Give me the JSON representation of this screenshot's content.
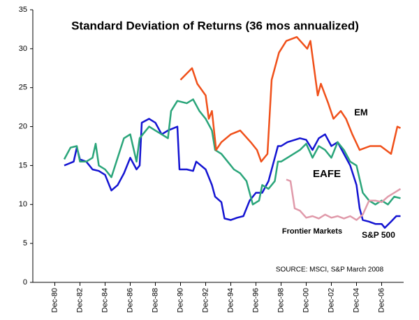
{
  "chart_data": {
    "type": "line",
    "title": "Standard Deviation of Returns (36 mos annualized)",
    "source": "SOURCE: MSCI, S&P  March 2008",
    "xlim": [
      "1979-03",
      "2008-09"
    ],
    "xticks": [
      {
        "value": "1980-12",
        "label": "Dec-80"
      },
      {
        "value": "1982-12",
        "label": "Dec-82"
      },
      {
        "value": "1984-12",
        "label": "Dec-84"
      },
      {
        "value": "1986-12",
        "label": "Dec-86"
      },
      {
        "value": "1988-12",
        "label": "Dec-88"
      },
      {
        "value": "1990-12",
        "label": "Dec-90"
      },
      {
        "value": "1992-12",
        "label": "Dec-92"
      },
      {
        "value": "1994-12",
        "label": "Dec-94"
      },
      {
        "value": "1996-12",
        "label": "Dec-96"
      },
      {
        "value": "1998-12",
        "label": "Dec-98"
      },
      {
        "value": "2000-12",
        "label": "Dec-00"
      },
      {
        "value": "2002-12",
        "label": "Dec-02"
      },
      {
        "value": "2004-12",
        "label": "Dec-04"
      },
      {
        "value": "2006-12",
        "label": "Dec-06"
      }
    ],
    "ylim": [
      0,
      35
    ],
    "yticks": [
      0,
      5,
      10,
      15,
      20,
      25,
      30,
      35
    ],
    "grid": false,
    "series": [
      {
        "name": "S&P 500",
        "color": "#1414d2",
        "x": [
          "1981-09",
          "1982-06",
          "1982-09",
          "1982-12",
          "1983-06",
          "1983-12",
          "1984-06",
          "1984-12",
          "1985-06",
          "1985-12",
          "1986-06",
          "1986-12",
          "1987-06",
          "1987-09",
          "1987-11",
          "1988-06",
          "1988-12",
          "1989-06",
          "1989-12",
          "1990-09",
          "1990-11",
          "1991-06",
          "1991-12",
          "1992-03",
          "1992-12",
          "1993-06",
          "1993-09",
          "1994-03",
          "1994-06",
          "1994-12",
          "1995-06",
          "1995-12",
          "1996-06",
          "1996-12",
          "1997-06",
          "1997-12",
          "1998-06",
          "1998-09",
          "1998-12",
          "1999-06",
          "2000-06",
          "2000-12",
          "2001-06",
          "2001-12",
          "2002-06",
          "2002-12",
          "2003-06",
          "2003-12",
          "2004-06",
          "2004-12",
          "2005-03",
          "2005-06",
          "2005-12",
          "2006-06",
          "2006-12",
          "2007-03",
          "2007-09",
          "2008-02",
          "2008-06"
        ],
        "values": [
          15,
          15.5,
          17.3,
          15.8,
          15.5,
          14.5,
          14.3,
          13.8,
          11.8,
          12.5,
          14,
          16,
          14.5,
          15,
          20.5,
          21,
          20.5,
          19,
          19.5,
          20,
          14.5,
          14.5,
          14.3,
          15.5,
          14.5,
          12.5,
          11,
          10.3,
          8.2,
          8,
          8.3,
          8.5,
          10.5,
          11.5,
          11.5,
          13,
          16,
          17.5,
          17.5,
          18,
          18.5,
          18.3,
          17,
          18.5,
          19,
          17.5,
          18,
          16.5,
          15,
          12.5,
          9.5,
          8,
          7.8,
          7.5,
          7.5,
          7,
          7.8,
          8.5,
          8.5
        ]
      },
      {
        "name": "EAFE",
        "color": "#2aa57a",
        "x": [
          "1981-09",
          "1982-03",
          "1982-09",
          "1982-12",
          "1983-06",
          "1983-12",
          "1984-03",
          "1984-06",
          "1984-12",
          "1985-06",
          "1985-12",
          "1986-06",
          "1986-12",
          "1987-06",
          "1987-09",
          "1987-12",
          "1988-06",
          "1988-12",
          "1989-06",
          "1989-12",
          "1990-03",
          "1990-09",
          "1991-06",
          "1991-12",
          "1992-06",
          "1992-12",
          "1993-06",
          "1993-09",
          "1994-03",
          "1994-09",
          "1995-03",
          "1995-09",
          "1996-03",
          "1996-09",
          "1997-03",
          "1997-06",
          "1997-12",
          "1998-06",
          "1998-09",
          "1998-12",
          "1999-06",
          "2000-06",
          "2000-12",
          "2001-06",
          "2001-12",
          "2002-06",
          "2002-12",
          "2003-06",
          "2003-12",
          "2004-06",
          "2004-12",
          "2005-06",
          "2005-12",
          "2006-06",
          "2006-12",
          "2007-06",
          "2007-12",
          "2008-06"
        ],
        "values": [
          15.8,
          17.3,
          17.5,
          15.5,
          15.5,
          16,
          17.8,
          15,
          14.5,
          13.5,
          16,
          18.5,
          19,
          15.5,
          18.5,
          19,
          20,
          19.5,
          19,
          18.5,
          22,
          23.3,
          23,
          23.5,
          22,
          21,
          19.5,
          17,
          16.5,
          15.5,
          14.5,
          14,
          13,
          10,
          10.5,
          12.5,
          12,
          13,
          15.5,
          15.5,
          16,
          17,
          17.8,
          16,
          17.5,
          17,
          16,
          18,
          17,
          15.5,
          15,
          11.5,
          10.5,
          10,
          10.5,
          10,
          11,
          10.8
        ]
      },
      {
        "name": "EM",
        "color": "#f0501a",
        "x": [
          "1990-12",
          "1991-11",
          "1992-04",
          "1992-12",
          "1993-03",
          "1993-06",
          "1993-10",
          "1994-03",
          "1994-12",
          "1995-09",
          "1996-07",
          "1997-01",
          "1997-05",
          "1997-11",
          "1998-03",
          "1998-10",
          "1999-05",
          "2000-03",
          "2001-01",
          "2001-04",
          "2001-11",
          "2002-02",
          "2002-09",
          "2003-02",
          "2003-09",
          "2004-02",
          "2004-08",
          "2005-03",
          "2006-01",
          "2006-11",
          "2007-09",
          "2008-03",
          "2008-06"
        ],
        "values": [
          26,
          27.5,
          25.5,
          24,
          21,
          22,
          17,
          18,
          19,
          19.5,
          18,
          17,
          15.5,
          16.5,
          26,
          29.5,
          31,
          31.5,
          30,
          31,
          24,
          25.5,
          23,
          21,
          22,
          21,
          19,
          17,
          17.5,
          17.5,
          16.5,
          20,
          19.8
        ]
      },
      {
        "name": "Frontier Markets",
        "color": "#e09aaa",
        "x": [
          "1999-05",
          "1999-09",
          "2000-01",
          "2000-06",
          "2000-12",
          "2001-06",
          "2001-12",
          "2002-06",
          "2002-12",
          "2003-06",
          "2003-12",
          "2004-06",
          "2004-12",
          "2005-06",
          "2005-12",
          "2006-06",
          "2006-12",
          "2007-06",
          "2007-12",
          "2008-06"
        ],
        "values": [
          13.2,
          13,
          9.5,
          9.2,
          8.3,
          8.5,
          8.2,
          8.7,
          8.3,
          8.5,
          8.2,
          8.5,
          8,
          8.7,
          10.5,
          10.5,
          10.3,
          11,
          11.5,
          12
        ]
      }
    ]
  }
}
